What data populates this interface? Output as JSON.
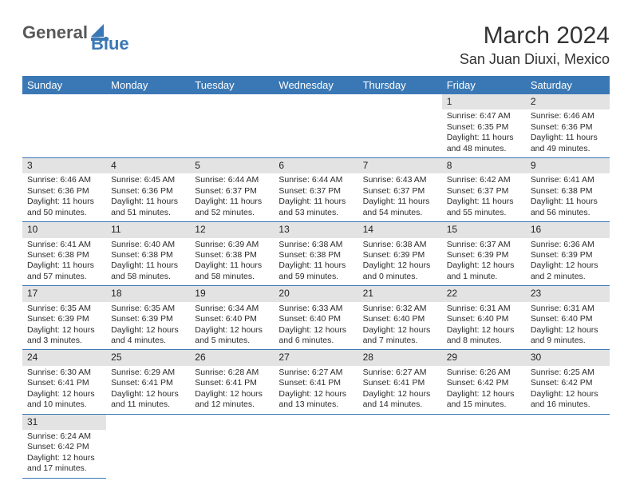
{
  "header": {
    "logo": {
      "part1": "General",
      "part2": "Blue",
      "color1": "#585858",
      "color2": "#3a78b5"
    },
    "month_title": "March 2024",
    "location": "San Juan Diuxi, Mexico"
  },
  "colors": {
    "header_bg": "#3a78b5",
    "header_text": "#ffffff",
    "daynum_bg": "#e3e3e3",
    "border": "#3a78b5",
    "body_text": "#2b2b2b"
  },
  "weekdays": [
    "Sunday",
    "Monday",
    "Tuesday",
    "Wednesday",
    "Thursday",
    "Friday",
    "Saturday"
  ],
  "layout": {
    "first_weekday_index": 5,
    "days_in_month": 31
  },
  "days": [
    {
      "n": 1,
      "sunrise": "6:47 AM",
      "sunset": "6:35 PM",
      "daylight": "11 hours and 48 minutes."
    },
    {
      "n": 2,
      "sunrise": "6:46 AM",
      "sunset": "6:36 PM",
      "daylight": "11 hours and 49 minutes."
    },
    {
      "n": 3,
      "sunrise": "6:46 AM",
      "sunset": "6:36 PM",
      "daylight": "11 hours and 50 minutes."
    },
    {
      "n": 4,
      "sunrise": "6:45 AM",
      "sunset": "6:36 PM",
      "daylight": "11 hours and 51 minutes."
    },
    {
      "n": 5,
      "sunrise": "6:44 AM",
      "sunset": "6:37 PM",
      "daylight": "11 hours and 52 minutes."
    },
    {
      "n": 6,
      "sunrise": "6:44 AM",
      "sunset": "6:37 PM",
      "daylight": "11 hours and 53 minutes."
    },
    {
      "n": 7,
      "sunrise": "6:43 AM",
      "sunset": "6:37 PM",
      "daylight": "11 hours and 54 minutes."
    },
    {
      "n": 8,
      "sunrise": "6:42 AM",
      "sunset": "6:37 PM",
      "daylight": "11 hours and 55 minutes."
    },
    {
      "n": 9,
      "sunrise": "6:41 AM",
      "sunset": "6:38 PM",
      "daylight": "11 hours and 56 minutes."
    },
    {
      "n": 10,
      "sunrise": "6:41 AM",
      "sunset": "6:38 PM",
      "daylight": "11 hours and 57 minutes."
    },
    {
      "n": 11,
      "sunrise": "6:40 AM",
      "sunset": "6:38 PM",
      "daylight": "11 hours and 58 minutes."
    },
    {
      "n": 12,
      "sunrise": "6:39 AM",
      "sunset": "6:38 PM",
      "daylight": "11 hours and 58 minutes."
    },
    {
      "n": 13,
      "sunrise": "6:38 AM",
      "sunset": "6:38 PM",
      "daylight": "11 hours and 59 minutes."
    },
    {
      "n": 14,
      "sunrise": "6:38 AM",
      "sunset": "6:39 PM",
      "daylight": "12 hours and 0 minutes."
    },
    {
      "n": 15,
      "sunrise": "6:37 AM",
      "sunset": "6:39 PM",
      "daylight": "12 hours and 1 minute."
    },
    {
      "n": 16,
      "sunrise": "6:36 AM",
      "sunset": "6:39 PM",
      "daylight": "12 hours and 2 minutes."
    },
    {
      "n": 17,
      "sunrise": "6:35 AM",
      "sunset": "6:39 PM",
      "daylight": "12 hours and 3 minutes."
    },
    {
      "n": 18,
      "sunrise": "6:35 AM",
      "sunset": "6:39 PM",
      "daylight": "12 hours and 4 minutes."
    },
    {
      "n": 19,
      "sunrise": "6:34 AM",
      "sunset": "6:40 PM",
      "daylight": "12 hours and 5 minutes."
    },
    {
      "n": 20,
      "sunrise": "6:33 AM",
      "sunset": "6:40 PM",
      "daylight": "12 hours and 6 minutes."
    },
    {
      "n": 21,
      "sunrise": "6:32 AM",
      "sunset": "6:40 PM",
      "daylight": "12 hours and 7 minutes."
    },
    {
      "n": 22,
      "sunrise": "6:31 AM",
      "sunset": "6:40 PM",
      "daylight": "12 hours and 8 minutes."
    },
    {
      "n": 23,
      "sunrise": "6:31 AM",
      "sunset": "6:40 PM",
      "daylight": "12 hours and 9 minutes."
    },
    {
      "n": 24,
      "sunrise": "6:30 AM",
      "sunset": "6:41 PM",
      "daylight": "12 hours and 10 minutes."
    },
    {
      "n": 25,
      "sunrise": "6:29 AM",
      "sunset": "6:41 PM",
      "daylight": "12 hours and 11 minutes."
    },
    {
      "n": 26,
      "sunrise": "6:28 AM",
      "sunset": "6:41 PM",
      "daylight": "12 hours and 12 minutes."
    },
    {
      "n": 27,
      "sunrise": "6:27 AM",
      "sunset": "6:41 PM",
      "daylight": "12 hours and 13 minutes."
    },
    {
      "n": 28,
      "sunrise": "6:27 AM",
      "sunset": "6:41 PM",
      "daylight": "12 hours and 14 minutes."
    },
    {
      "n": 29,
      "sunrise": "6:26 AM",
      "sunset": "6:42 PM",
      "daylight": "12 hours and 15 minutes."
    },
    {
      "n": 30,
      "sunrise": "6:25 AM",
      "sunset": "6:42 PM",
      "daylight": "12 hours and 16 minutes."
    },
    {
      "n": 31,
      "sunrise": "6:24 AM",
      "sunset": "6:42 PM",
      "daylight": "12 hours and 17 minutes."
    }
  ],
  "labels": {
    "sunrise": "Sunrise:",
    "sunset": "Sunset:",
    "daylight": "Daylight:"
  }
}
